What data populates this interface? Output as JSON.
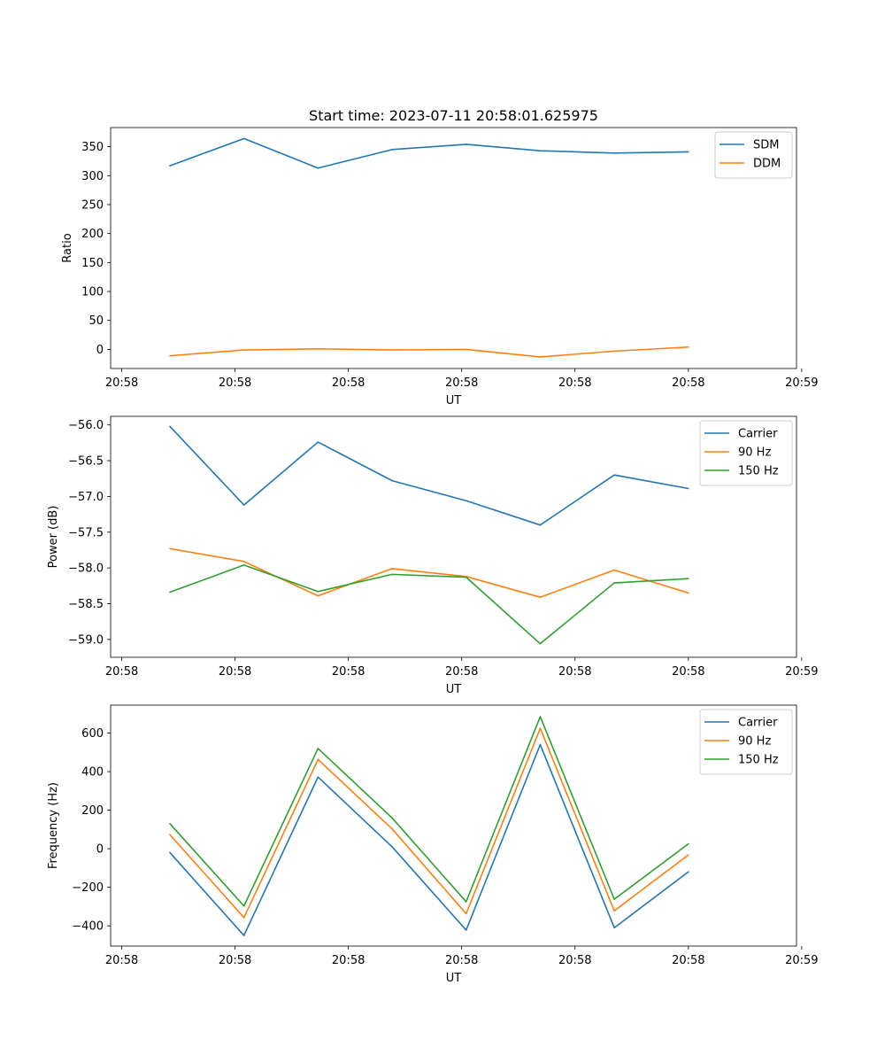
{
  "chart_data": [
    {
      "type": "line",
      "title": "Start time: 2023-07-11 20:58:01.625975",
      "xlabel": "UT",
      "ylabel": "Ratio",
      "x": [
        1,
        2,
        3,
        4,
        5,
        6,
        7,
        8
      ],
      "xlim": [
        0.2,
        9.46
      ],
      "x_ticks": [
        0.35,
        1.88,
        3.41,
        4.94,
        6.47,
        8.0,
        9.53
      ],
      "x_tick_labels": [
        "20:58",
        "20:58",
        "20:58",
        "20:58",
        "20:58",
        "20:58",
        "20:59"
      ],
      "ylim": [
        -33,
        383
      ],
      "y_ticks": [
        0,
        50,
        100,
        150,
        200,
        250,
        300,
        350
      ],
      "y_tick_labels": [
        "0",
        "50",
        "100",
        "150",
        "200",
        "250",
        "300",
        "350"
      ],
      "legend": "top-right",
      "series": [
        {
          "name": "SDM",
          "color": "#1f77b4",
          "values": [
            317,
            364,
            313,
            345,
            354,
            343,
            339,
            341
          ]
        },
        {
          "name": "DDM",
          "color": "#ff7f0e",
          "values": [
            -11,
            -1,
            1,
            -1,
            0,
            -13,
            -3,
            4
          ]
        }
      ]
    },
    {
      "type": "line",
      "title": "",
      "xlabel": "UT",
      "ylabel": "Power (dB)",
      "x": [
        1,
        2,
        3,
        4,
        5,
        6,
        7,
        8
      ],
      "xlim": [
        0.2,
        9.46
      ],
      "x_ticks": [
        0.35,
        1.88,
        3.41,
        4.94,
        6.47,
        8.0,
        9.53
      ],
      "x_tick_labels": [
        "20:58",
        "20:58",
        "20:58",
        "20:58",
        "20:58",
        "20:58",
        "20:59"
      ],
      "ylim": [
        -59.25,
        -55.88
      ],
      "y_ticks": [
        -56.0,
        -56.5,
        -57.0,
        -57.5,
        -58.0,
        -58.5,
        -59.0
      ],
      "y_tick_labels": [
        "−56.0",
        "−56.5",
        "−57.0",
        "−57.5",
        "−58.0",
        "−58.5",
        "−59.0"
      ],
      "legend": "top-right",
      "series": [
        {
          "name": "Carrier",
          "color": "#1f77b4",
          "values": [
            -56.02,
            -57.12,
            -56.24,
            -56.78,
            -57.06,
            -57.4,
            -56.7,
            -56.89
          ]
        },
        {
          "name": "90 Hz",
          "color": "#ff7f0e",
          "values": [
            -57.73,
            -57.91,
            -58.39,
            -58.01,
            -58.12,
            -58.41,
            -58.03,
            -58.35
          ]
        },
        {
          "name": "150 Hz",
          "color": "#2ca02c",
          "values": [
            -58.34,
            -57.96,
            -58.33,
            -58.09,
            -58.13,
            -59.06,
            -58.21,
            -58.15
          ]
        }
      ]
    },
    {
      "type": "line",
      "title": "",
      "xlabel": "UT",
      "ylabel": "Frequency (Hz)",
      "x": [
        1,
        2,
        3,
        4,
        5,
        6,
        7,
        8
      ],
      "xlim": [
        0.2,
        9.46
      ],
      "x_ticks": [
        0.35,
        1.88,
        3.41,
        4.94,
        6.47,
        8.0,
        9.53
      ],
      "x_tick_labels": [
        "20:58",
        "20:58",
        "20:58",
        "20:58",
        "20:58",
        "20:58",
        "20:59"
      ],
      "ylim": [
        -505,
        745
      ],
      "y_ticks": [
        -400,
        -200,
        0,
        200,
        400,
        600
      ],
      "y_tick_labels": [
        "−400",
        "−200",
        "0",
        "200",
        "400",
        "600"
      ],
      "legend": "top-right",
      "series": [
        {
          "name": "Carrier",
          "color": "#1f77b4",
          "values": [
            -20,
            -450,
            372,
            10,
            -422,
            540,
            -410,
            -120
          ]
        },
        {
          "name": "90 Hz",
          "color": "#ff7f0e",
          "values": [
            73,
            -357,
            463,
            103,
            -337,
            625,
            -322,
            -32
          ]
        },
        {
          "name": "150 Hz",
          "color": "#2ca02c",
          "values": [
            130,
            -297,
            520,
            160,
            -275,
            685,
            -262,
            25
          ]
        }
      ]
    }
  ]
}
